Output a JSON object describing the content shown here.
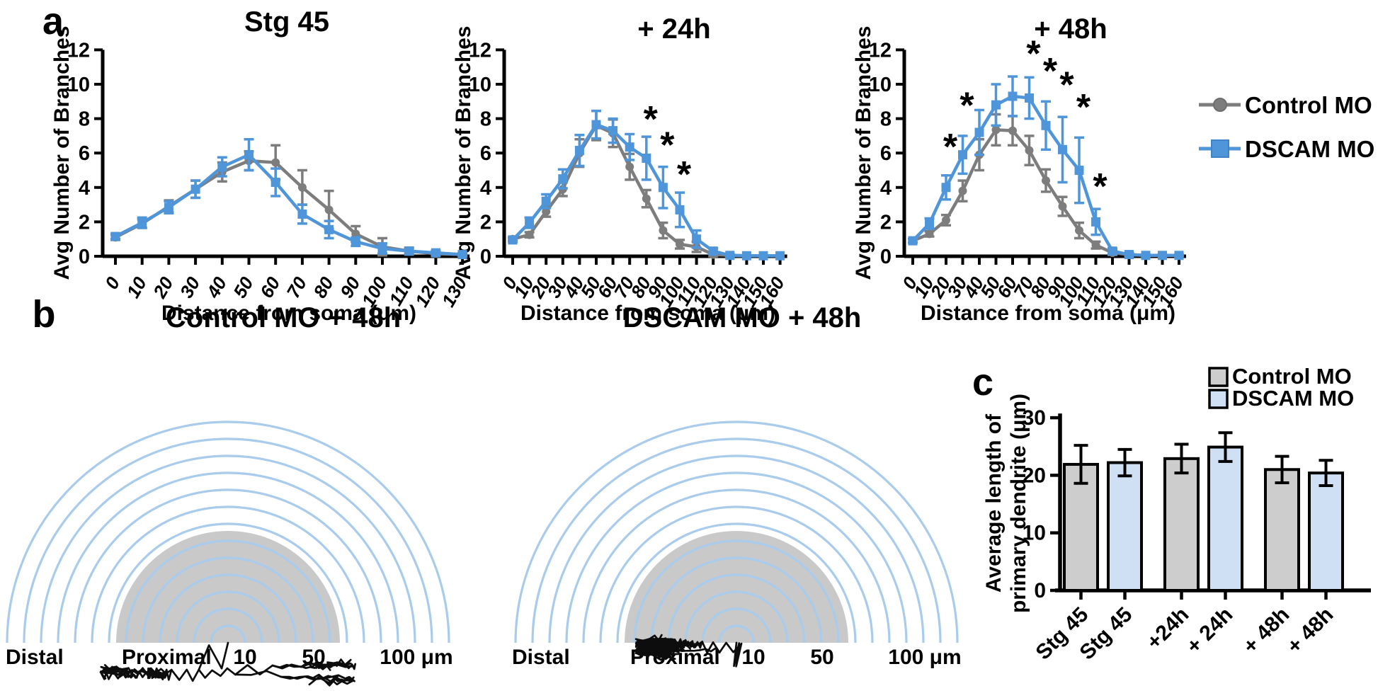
{
  "panels": {
    "a": {
      "label": "a",
      "legend": [
        {
          "label": "Control MO",
          "color": "#7d7d7d",
          "marker": "circle"
        },
        {
          "label": "DSCAM MO",
          "color": "#4f95d9",
          "marker": "square"
        }
      ]
    },
    "b": {
      "label": "b",
      "left_title": "Control MO + 48h",
      "right_title": "DSCAM MO + 48h",
      "scale": {
        "distal": "Distal",
        "proximal": "Proximal",
        "ten": "10",
        "fifty": "50",
        "hundred": "100 μm"
      },
      "rings": 13,
      "ring_step_um": 10,
      "ring_color": "#a9cbec",
      "proximal_fill": "#c9c9c9"
    },
    "c": {
      "label": "c",
      "ylabel_line1": "Average length of",
      "ylabel_line2": "primary dendrite (μm)",
      "legend": [
        {
          "label": "Control MO",
          "color": "#cdcdcd"
        },
        {
          "label": "DSCAM MO",
          "color": "#cfe0f4"
        }
      ]
    }
  },
  "chart_data": [
    {
      "type": "line",
      "title": "Stg 45",
      "xlabel": "Distance from soma (μm)",
      "ylabel": "Avg Number of Branches",
      "ylim": [
        0,
        12
      ],
      "yticks": [
        0,
        2,
        4,
        6,
        8,
        10,
        12
      ],
      "x": [
        0,
        10,
        20,
        30,
        40,
        50,
        60,
        70,
        80,
        90,
        100,
        110,
        120,
        130
      ],
      "series": [
        {
          "name": "Control MO",
          "color": "#7d7d7d",
          "marker": "circle",
          "values": [
            1.1,
            1.9,
            2.9,
            3.9,
            4.9,
            5.55,
            5.45,
            4.0,
            2.7,
            1.3,
            0.55,
            0.3,
            0.15,
            0.1
          ],
          "errors": [
            0.15,
            0.25,
            0.35,
            0.5,
            0.55,
            0.55,
            1.0,
            1.0,
            1.1,
            0.45,
            0.5,
            0.2,
            0.12,
            0.08
          ]
        },
        {
          "name": "DSCAM MO",
          "color": "#4f95d9",
          "marker": "square",
          "values": [
            1.15,
            1.95,
            2.85,
            3.9,
            5.2,
            5.9,
            4.3,
            2.45,
            1.55,
            0.85,
            0.45,
            0.3,
            0.2,
            0.1
          ],
          "errors": [
            0.15,
            0.3,
            0.35,
            0.5,
            0.55,
            0.9,
            0.8,
            0.55,
            0.5,
            0.25,
            0.3,
            0.15,
            0.12,
            0.08
          ]
        }
      ],
      "asterisks": []
    },
    {
      "type": "line",
      "title": "+ 24h",
      "xlabel": "Distance from soma (μm)",
      "ylabel": "Avg Number of Branches",
      "ylim": [
        0,
        12
      ],
      "yticks": [
        0,
        2,
        4,
        6,
        8,
        10,
        12
      ],
      "x": [
        0,
        10,
        20,
        30,
        40,
        50,
        60,
        70,
        80,
        90,
        100,
        110,
        120,
        130,
        140,
        150,
        160
      ],
      "series": [
        {
          "name": "Control MO",
          "color": "#7d7d7d",
          "marker": "circle",
          "values": [
            1.0,
            1.25,
            2.6,
            3.9,
            6.0,
            7.6,
            7.15,
            5.2,
            3.35,
            1.5,
            0.7,
            0.55,
            0.1,
            0.05,
            0.03,
            0.03,
            0.03
          ],
          "errors": [
            0.1,
            0.15,
            0.3,
            0.4,
            0.8,
            0.85,
            0.8,
            0.75,
            0.5,
            0.45,
            0.25,
            0.3,
            0.1,
            0.05,
            0.03,
            0.03,
            0.03
          ]
        },
        {
          "name": "DSCAM MO",
          "color": "#4f95d9",
          "marker": "square",
          "values": [
            0.95,
            1.95,
            3.2,
            4.5,
            6.15,
            7.65,
            7.3,
            6.35,
            5.7,
            4.0,
            2.7,
            1.0,
            0.3,
            0.05,
            0.03,
            0.03,
            0.03
          ],
          "errors": [
            0.1,
            0.3,
            0.4,
            0.55,
            0.9,
            0.8,
            0.7,
            0.75,
            1.25,
            1.2,
            1.0,
            0.5,
            0.15,
            0.05,
            0.03,
            0.03,
            0.03
          ]
        }
      ],
      "asterisks": [
        {
          "x": 80,
          "y": 7.9
        },
        {
          "x": 90,
          "y": 6.4
        },
        {
          "x": 100,
          "y": 4.7
        }
      ]
    },
    {
      "type": "line",
      "title": "+ 48h",
      "xlabel": "Distance from soma (μm)",
      "ylabel": "Avg Number of Branches",
      "ylim": [
        0,
        12
      ],
      "yticks": [
        0,
        2,
        4,
        6,
        8,
        10,
        12
      ],
      "x": [
        0,
        10,
        20,
        30,
        40,
        50,
        60,
        70,
        80,
        90,
        100,
        110,
        120,
        130,
        140,
        150,
        160
      ],
      "series": [
        {
          "name": "Control MO",
          "color": "#7d7d7d",
          "marker": "circle",
          "values": [
            0.9,
            1.3,
            2.1,
            3.8,
            5.9,
            7.35,
            7.3,
            6.15,
            4.4,
            2.9,
            1.5,
            0.65,
            0.2,
            0.1,
            0.05,
            0.05,
            0.05
          ],
          "errors": [
            0.1,
            0.15,
            0.3,
            0.6,
            0.9,
            0.9,
            0.85,
            0.85,
            0.65,
            0.55,
            0.45,
            0.2,
            0.12,
            0.08,
            0.04,
            0.04,
            0.04
          ]
        },
        {
          "name": "DSCAM MO",
          "color": "#4f95d9",
          "marker": "square",
          "values": [
            0.9,
            1.9,
            4.0,
            5.9,
            7.2,
            8.8,
            9.3,
            9.2,
            7.6,
            6.2,
            5.0,
            2.0,
            0.3,
            0.1,
            0.05,
            0.05,
            0.05
          ],
          "errors": [
            0.1,
            0.3,
            0.7,
            1.1,
            1.3,
            1.2,
            1.15,
            1.2,
            1.4,
            1.9,
            1.9,
            0.75,
            0.15,
            0.08,
            0.04,
            0.04,
            0.04
          ]
        }
      ],
      "asterisks": [
        {
          "x": 20,
          "y": 6.3
        },
        {
          "x": 30,
          "y": 8.7
        },
        {
          "x": 70,
          "y": 11.7
        },
        {
          "x": 80,
          "y": 10.7
        },
        {
          "x": 90,
          "y": 9.9
        },
        {
          "x": 100,
          "y": 8.6
        },
        {
          "x": 110,
          "y": 4.0
        }
      ]
    },
    {
      "type": "bar",
      "title": "",
      "ylabel": "Average length of primary dendrite (μm)",
      "ylim": [
        0,
        30
      ],
      "yticks": [
        0,
        10,
        20,
        30
      ],
      "categories": [
        "Stg 45",
        "Stg 45",
        "+24h",
        "+ 24h",
        "+ 48h",
        "+ 48h"
      ],
      "groups": [
        "Control MO",
        "DSCAM MO",
        "Control MO",
        "DSCAM MO",
        "Control MO",
        "DSCAM MO"
      ],
      "values": [
        21.9,
        22.2,
        22.9,
        24.9,
        21.0,
        20.4
      ],
      "errors": [
        3.3,
        2.3,
        2.5,
        2.5,
        2.3,
        2.2
      ],
      "bar_colors": [
        "#cdcdcd",
        "#cfe0f4",
        "#cdcdcd",
        "#cfe0f4",
        "#cdcdcd",
        "#cfe0f4"
      ]
    }
  ]
}
